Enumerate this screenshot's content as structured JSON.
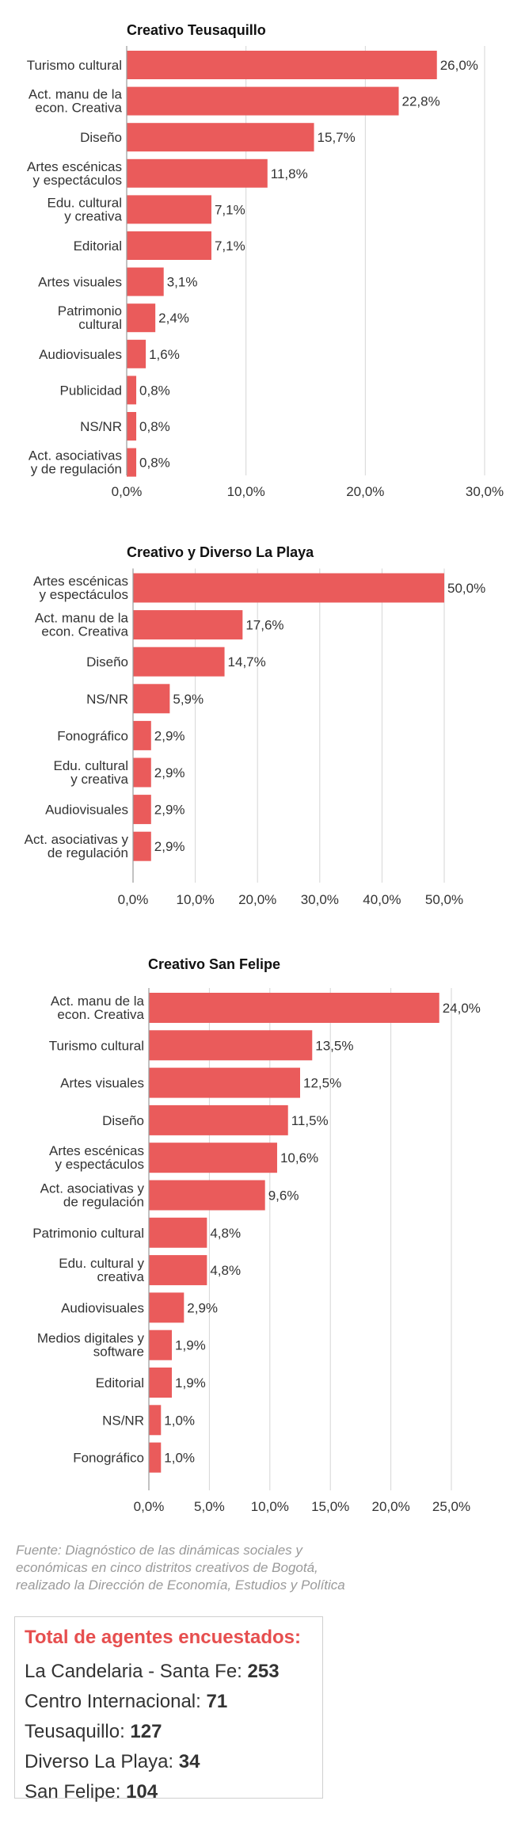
{
  "chart_data": [
    {
      "type": "bar",
      "orientation": "horizontal",
      "title": "Creativo Teusaquillo",
      "categories": [
        [
          "Turismo cultural"
        ],
        [
          "Act. manu de la",
          "econ. Creativa"
        ],
        [
          "Diseño"
        ],
        [
          "Artes escénicas",
          "y espectáculos"
        ],
        [
          "Edu. cultural",
          "y creativa"
        ],
        [
          "Editorial"
        ],
        [
          "Artes visuales"
        ],
        [
          "Patrimonio",
          "cultural"
        ],
        [
          "Audiovisuales"
        ],
        [
          "Publicidad"
        ],
        [
          "NS/NR"
        ],
        [
          "Act. asociativas",
          "y de regulación"
        ]
      ],
      "values": [
        26.0,
        22.8,
        15.7,
        11.8,
        7.1,
        7.1,
        3.1,
        2.4,
        1.6,
        0.8,
        0.8,
        0.8
      ],
      "value_labels": [
        "26,0%",
        "22,8%",
        "15,7%",
        "11,8%",
        "7,1%",
        "7,1%",
        "3,1%",
        "2,4%",
        "1,6%",
        "0,8%",
        "0,8%",
        "0,8%"
      ],
      "xlim": [
        0,
        30
      ],
      "ticks": [
        0,
        10,
        20,
        30
      ],
      "tick_labels": [
        "0,0%",
        "10,0%",
        "20,0%",
        "30,0%"
      ],
      "grid": true,
      "xlabel": "",
      "ylabel": "",
      "bar_color": "#ea5b5b"
    },
    {
      "type": "bar",
      "orientation": "horizontal",
      "title": "Creativo y Diverso La Playa",
      "categories": [
        [
          "Artes escénicas",
          "y espectáculos"
        ],
        [
          "Act. manu de la",
          "econ. Creativa"
        ],
        [
          "Diseño"
        ],
        [
          "NS/NR"
        ],
        [
          "Fonográfico"
        ],
        [
          "Edu. cultural",
          "y creativa"
        ],
        [
          "Audiovisuales"
        ],
        [
          "Act. asociativas y",
          "de regulación"
        ]
      ],
      "values": [
        50.0,
        17.6,
        14.7,
        5.9,
        2.9,
        2.9,
        2.9,
        2.9
      ],
      "value_labels": [
        "50,0%",
        "17,6%",
        "14,7%",
        "5,9%",
        "2,9%",
        "2,9%",
        "2,9%",
        "2,9%"
      ],
      "xlim": [
        0,
        50
      ],
      "ticks": [
        0,
        10,
        20,
        30,
        40,
        50
      ],
      "tick_labels": [
        "0,0%",
        "10,0%",
        "20,0%",
        "30,0%",
        "40,0%",
        "50,0%"
      ],
      "grid": true,
      "xlabel": "",
      "ylabel": "",
      "bar_color": "#ea5b5b"
    },
    {
      "type": "bar",
      "orientation": "horizontal",
      "title": "Creativo San Felipe",
      "categories": [
        [
          "Act. manu de la",
          "econ. Creativa"
        ],
        [
          "Turismo cultural"
        ],
        [
          "Artes visuales"
        ],
        [
          "Diseño"
        ],
        [
          "Artes escénicas",
          "y espectáculos"
        ],
        [
          "Act. asociativas y",
          "de regulación"
        ],
        [
          "Patrimonio cultural"
        ],
        [
          "Edu. cultural y",
          "creativa"
        ],
        [
          "Audiovisuales"
        ],
        [
          "Medios digitales y",
          "software"
        ],
        [
          "Editorial"
        ],
        [
          "NS/NR"
        ],
        [
          "Fonográfico"
        ]
      ],
      "values": [
        24.0,
        13.5,
        12.5,
        11.5,
        10.6,
        9.6,
        4.8,
        4.8,
        2.9,
        1.9,
        1.9,
        1.0,
        1.0
      ],
      "value_labels": [
        "24,0%",
        "13,5%",
        "12,5%",
        "11,5%",
        "10,6%",
        "9,6%",
        "4,8%",
        "4,8%",
        "2,9%",
        "1,9%",
        "1,9%",
        "1,0%",
        "1,0%"
      ],
      "xlim": [
        0,
        25
      ],
      "ticks": [
        0,
        5,
        10,
        15,
        20,
        25
      ],
      "tick_labels": [
        "0,0%",
        "5,0%",
        "10,0%",
        "15,0%",
        "20,0%",
        "25,0%"
      ],
      "grid": true,
      "xlabel": "",
      "ylabel": "",
      "bar_color": "#ea5b5b"
    }
  ],
  "source": {
    "lines": [
      "Fuente: Diagnóstico de las dinámicas sociales y",
      "económicas en cinco distritos creativos de Bogotá,",
      "realizado la Dirección de Economía, Estudios y Política"
    ]
  },
  "totals": {
    "title": "Total de agentes encuestados:",
    "rows": [
      {
        "label": "La Candelaria - Santa Fe: ",
        "value": "253"
      },
      {
        "label": "Centro Internacional: ",
        "value": "71"
      },
      {
        "label": "Teusaquillo: ",
        "value": "127"
      },
      {
        "label": "Diverso La Playa: ",
        "value": "34"
      },
      {
        "label": "San Felipe: ",
        "value": "104"
      }
    ]
  }
}
